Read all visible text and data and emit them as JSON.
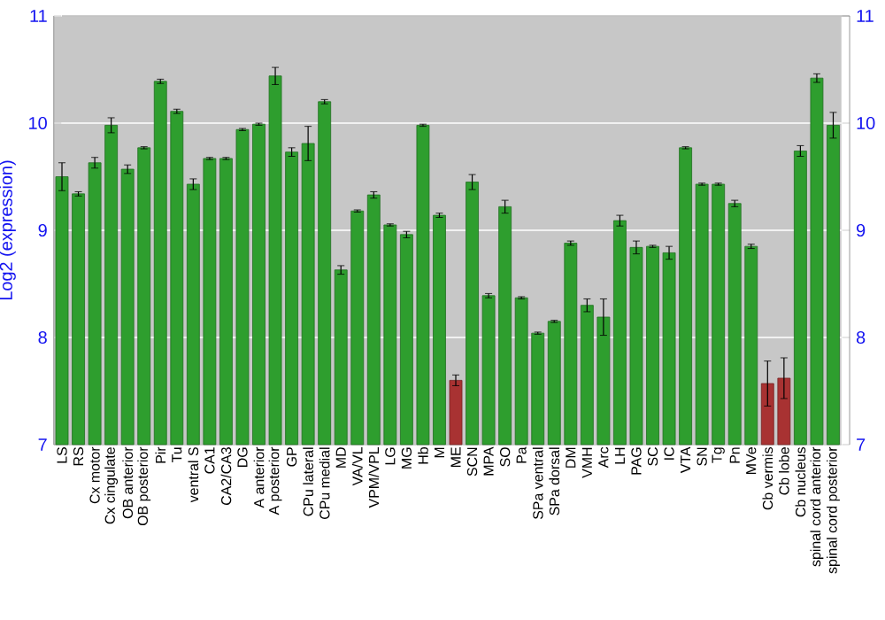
{
  "chart_data": {
    "type": "bar",
    "ylabel": "Log2 (expression)",
    "categories": [
      "LS",
      "RS",
      "Cx motor",
      "Cx cingulate",
      "OB anterior",
      "OB posterior",
      "Pir",
      "Tu",
      "ventral S",
      "CA1",
      "CA2/CA3",
      "DG",
      "A anterior",
      "A posterior",
      "GP",
      "CPu lateral",
      "CPu medial",
      "MD",
      "VA/VL",
      "VPM/VPL",
      "LG",
      "MG",
      "Hb",
      "M",
      "ME",
      "SCN",
      "MPA",
      "SO",
      "Pa",
      "SPa ventral",
      "SPa dorsal",
      "DM",
      "VMH",
      "Arc",
      "LH",
      "PAG",
      "SC",
      "IC",
      "VTA",
      "SN",
      "Tg",
      "Pn",
      "MVe",
      "Cb vermis",
      "Cb lobe",
      "Cb nucleus",
      "spinal cord anterior",
      "spinal cord posterior"
    ],
    "values": [
      9.5,
      9.34,
      9.63,
      9.98,
      9.57,
      9.77,
      10.39,
      10.11,
      9.43,
      9.67,
      9.67,
      9.94,
      9.99,
      10.44,
      9.73,
      9.81,
      10.2,
      8.63,
      9.18,
      9.33,
      9.05,
      8.96,
      9.98,
      9.14,
      7.6,
      9.45,
      8.39,
      9.22,
      8.37,
      8.04,
      8.15,
      8.88,
      8.3,
      8.19,
      9.09,
      8.84,
      8.85,
      8.79,
      9.77,
      9.43,
      9.43,
      9.25,
      8.85,
      7.57,
      7.62,
      9.74,
      10.42,
      9.98
    ],
    "errors": [
      0.13,
      0.02,
      0.05,
      0.07,
      0.04,
      0.01,
      0.02,
      0.02,
      0.05,
      0.01,
      0.01,
      0.01,
      0.01,
      0.08,
      0.04,
      0.16,
      0.02,
      0.04,
      0.01,
      0.03,
      0.01,
      0.03,
      0.01,
      0.02,
      0.05,
      0.07,
      0.02,
      0.06,
      0.01,
      0.01,
      0.01,
      0.02,
      0.06,
      0.17,
      0.05,
      0.06,
      0.01,
      0.06,
      0.01,
      0.01,
      0.01,
      0.03,
      0.02,
      0.21,
      0.19,
      0.05,
      0.04,
      0.12
    ],
    "colors": [
      "#2e9e2e",
      "#2e9e2e",
      "#2e9e2e",
      "#2e9e2e",
      "#2e9e2e",
      "#2e9e2e",
      "#2e9e2e",
      "#2e9e2e",
      "#2e9e2e",
      "#2e9e2e",
      "#2e9e2e",
      "#2e9e2e",
      "#2e9e2e",
      "#2e9e2e",
      "#2e9e2e",
      "#2e9e2e",
      "#2e9e2e",
      "#2e9e2e",
      "#2e9e2e",
      "#2e9e2e",
      "#2e9e2e",
      "#2e9e2e",
      "#2e9e2e",
      "#2e9e2e",
      "#a83232",
      "#2e9e2e",
      "#2e9e2e",
      "#2e9e2e",
      "#2e9e2e",
      "#2e9e2e",
      "#2e9e2e",
      "#2e9e2e",
      "#2e9e2e",
      "#2e9e2e",
      "#2e9e2e",
      "#2e9e2e",
      "#2e9e2e",
      "#2e9e2e",
      "#2e9e2e",
      "#2e9e2e",
      "#2e9e2e",
      "#2e9e2e",
      "#2e9e2e",
      "#a83232",
      "#a83232",
      "#2e9e2e",
      "#2e9e2e",
      "#2e9e2e"
    ],
    "ylim": [
      7,
      11
    ],
    "yticks": [
      7,
      8,
      9,
      10,
      11
    ],
    "y2lim": [
      7,
      11
    ],
    "y2ticks": [
      7,
      8,
      9,
      10,
      11
    ],
    "grid": "y"
  }
}
